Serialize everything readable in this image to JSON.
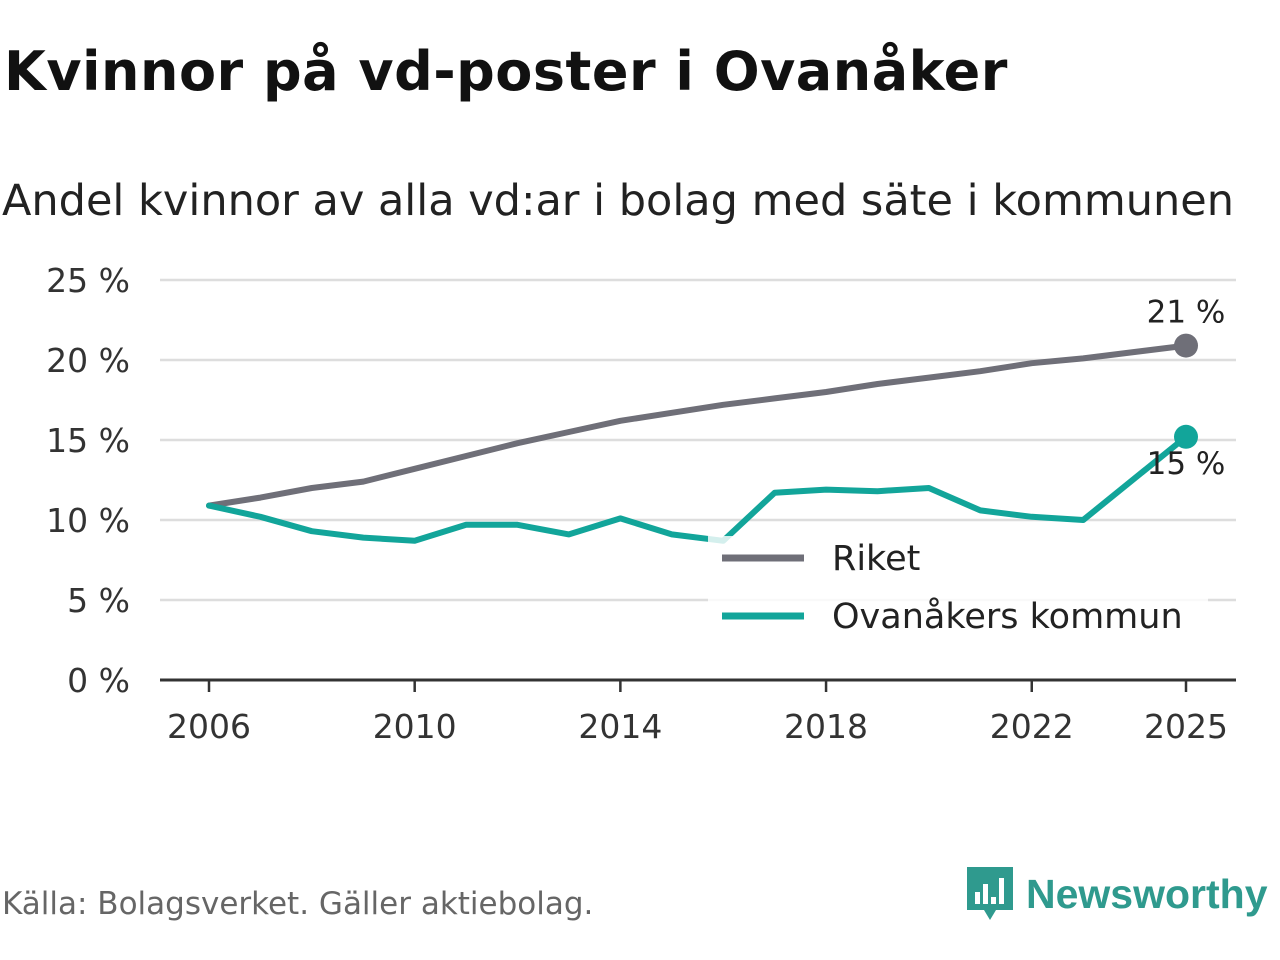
{
  "title": "Kvinnor på vd-poster i Ovanåker",
  "subtitle": "Andel kvinnor av alla vd:ar i bolag med säte i kommunen",
  "source": "Källa: Bolagsverket. Gäller aktiebolag.",
  "logo_text": "Newsworthy",
  "logo_icon": "newsworthy-bar-chart-icon",
  "colors": {
    "riket": "#6f6f78",
    "kommun": "#12a59a",
    "grid": "#dddddd",
    "axis": "#333333",
    "brand": "#2f9a8e"
  },
  "chart_data": {
    "type": "line",
    "title": "Kvinnor på vd-poster i Ovanåker",
    "subtitle": "Andel kvinnor av alla vd:ar i bolag med säte i kommunen",
    "xlabel": "",
    "ylabel": "",
    "xlim": [
      2005,
      2026
    ],
    "ylim": [
      0,
      25
    ],
    "x": [
      2006,
      2007,
      2008,
      2009,
      2010,
      2011,
      2012,
      2013,
      2014,
      2015,
      2016,
      2017,
      2018,
      2019,
      2020,
      2021,
      2022,
      2023,
      2025
    ],
    "x_ticks": [
      2006,
      2010,
      2014,
      2018,
      2022,
      2025
    ],
    "x_tick_labels": [
      "2006",
      "2010",
      "2014",
      "2018",
      "2022",
      "2025"
    ],
    "y_ticks": [
      0,
      5,
      10,
      15,
      20,
      25
    ],
    "y_tick_labels": [
      "0 %",
      "5 %",
      "10 %",
      "15 %",
      "20 %",
      "25 %"
    ],
    "grid": true,
    "legend_position": "bottom-right",
    "series": [
      {
        "name": "Riket",
        "color": "#6f6f78",
        "values": [
          10.9,
          11.4,
          12.0,
          12.4,
          13.2,
          14.0,
          14.8,
          15.5,
          16.2,
          16.7,
          17.2,
          17.6,
          18.0,
          18.5,
          18.9,
          19.3,
          19.8,
          20.1,
          20.9
        ],
        "end_label": "21 %"
      },
      {
        "name": "Ovanåkers kommun",
        "color": "#12a59a",
        "values": [
          10.9,
          10.2,
          9.3,
          8.9,
          8.7,
          9.7,
          9.7,
          9.1,
          10.1,
          9.1,
          8.7,
          11.7,
          11.9,
          11.8,
          12.0,
          10.6,
          10.2,
          10.0,
          15.2
        ],
        "end_label": "15 %"
      }
    ]
  }
}
